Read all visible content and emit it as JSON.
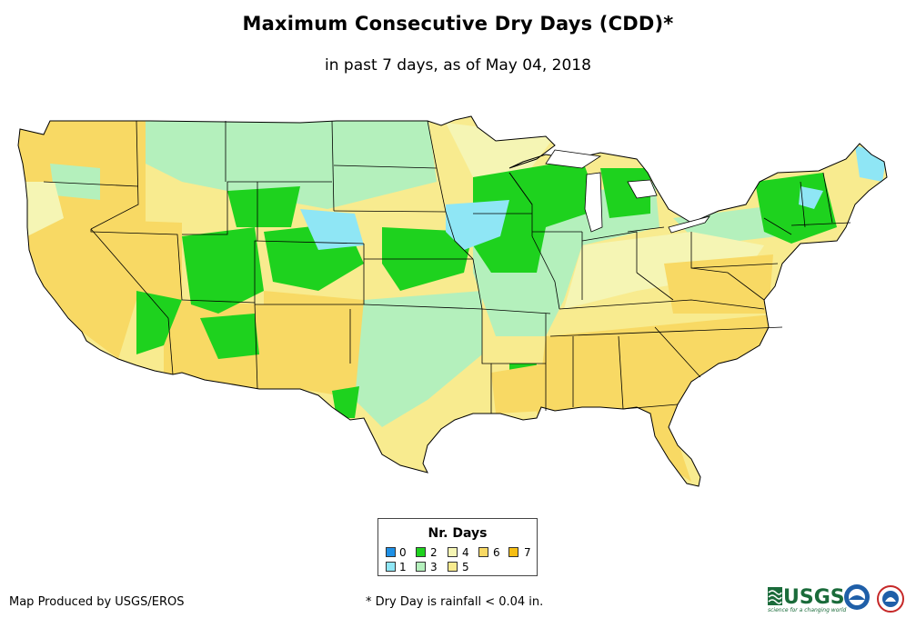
{
  "title": "Maximum Consecutive Dry Days (CDD)*",
  "subtitle": "in past 7 days, as of May 04, 2018",
  "legend": {
    "title": "Nr. Days",
    "items": [
      {
        "label": "0",
        "color": "#1e90e6"
      },
      {
        "label": "1",
        "color": "#8fe6f5"
      },
      {
        "label": "2",
        "color": "#1ed21e"
      },
      {
        "label": "3",
        "color": "#b4f0bc"
      },
      {
        "label": "4",
        "color": "#f5f5b4"
      },
      {
        "label": "5",
        "color": "#f8eb8f"
      },
      {
        "label": "6",
        "color": "#f8d964"
      },
      {
        "label": "7",
        "color": "#f5be14"
      }
    ]
  },
  "producer": "Map Produced by USGS/EROS",
  "footnote": "* Dry Day is rainfall < 0.04 in.",
  "logos": {
    "usgs": "USGS",
    "usgs_tagline": "science for a changing world",
    "noaa": "noaa-logo-icon",
    "nws": "nws-logo-icon"
  }
}
